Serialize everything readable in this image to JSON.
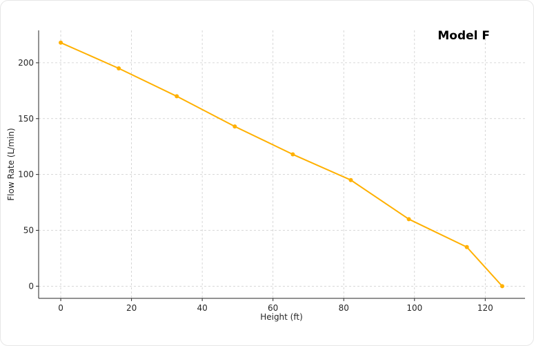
{
  "chart_data": {
    "type": "line",
    "title": "Model F",
    "xlabel": "Height (ft)",
    "ylabel": "Flow Rate (L/min)",
    "xlim": [
      -6.25,
      131.25
    ],
    "ylim": [
      -10.9,
      229
    ],
    "xticks": [
      0,
      20,
      40,
      60,
      80,
      100,
      120
    ],
    "yticks": [
      0,
      50,
      100,
      150,
      200
    ],
    "grid": true,
    "series": [
      {
        "color": "#FFB000",
        "x": [
          0,
          16.4,
          32.8,
          49.2,
          65.6,
          82,
          98.4,
          114.8,
          124.8
        ],
        "y": [
          218,
          195,
          170,
          143,
          118,
          95,
          60,
          35,
          0
        ]
      }
    ]
  }
}
